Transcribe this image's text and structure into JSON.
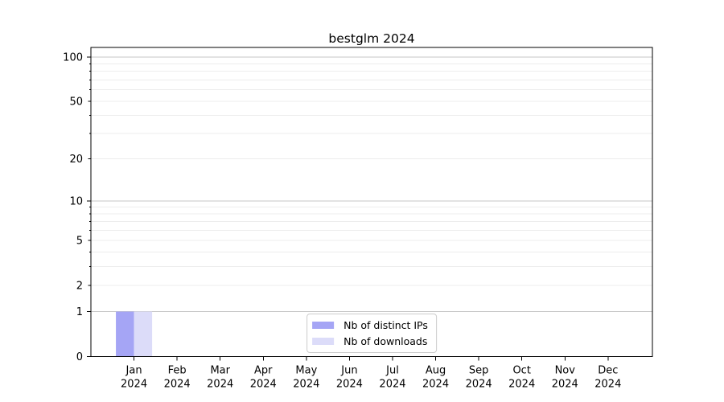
{
  "chart_data": {
    "type": "bar",
    "title": "bestglm 2024",
    "categories": [
      "Jan",
      "Feb",
      "Mar",
      "Apr",
      "May",
      "Jun",
      "Jul",
      "Aug",
      "Sep",
      "Oct",
      "Nov",
      "Dec"
    ],
    "year": "2024",
    "series": [
      {
        "name": "Nb of distinct IPs",
        "color": "#a5a5f5",
        "values": [
          1,
          0,
          0,
          0,
          0,
          0,
          0,
          0,
          0,
          0,
          0,
          0
        ]
      },
      {
        "name": "Nb of downloads",
        "color": "#dcdcf9",
        "values": [
          1,
          0,
          0,
          0,
          0,
          0,
          0,
          0,
          0,
          0,
          0,
          0
        ]
      }
    ],
    "y_scale": "log1p",
    "ylim": [
      0,
      116
    ],
    "y_ticks_labeled": [
      0,
      1,
      2,
      5,
      10,
      20,
      50,
      100
    ],
    "y_grid_major": [
      1,
      10,
      100
    ],
    "y_grid_minor": [
      2,
      3,
      4,
      5,
      6,
      7,
      8,
      9,
      20,
      30,
      40,
      50,
      60,
      70,
      80,
      90
    ],
    "xlabel": "",
    "ylabel": "",
    "grid": true,
    "legend_position": "lower center",
    "colors": {
      "grid_major": "#c6c6c6",
      "grid_minor": "#ededed",
      "axis": "#000000"
    }
  }
}
